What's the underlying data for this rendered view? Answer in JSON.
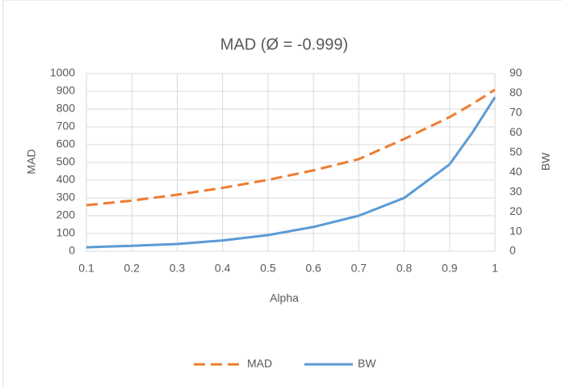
{
  "chart_data": {
    "type": "line",
    "title": "MAD (Ø = -0.999)",
    "x_label": "Alpha",
    "y_label": "MAD",
    "y2_label": "BW",
    "x": [
      0.1,
      0.2,
      0.3,
      0.4,
      0.5,
      0.6,
      0.7,
      0.8,
      0.9,
      0.95,
      1
    ],
    "series": [
      {
        "name": "MAD",
        "color": "#ed7d31",
        "dashed": true,
        "values": [
          259,
          285,
          318,
          357,
          402,
          455,
          518,
          632,
          755,
          828,
          909
        ]
      },
      {
        "name": "BW",
        "color": "#5b9bd5",
        "axis": "y2",
        "values": [
          2,
          2.8,
          3.7,
          5.5,
          8.2,
          12.3,
          18,
          27,
          44,
          60,
          78
        ]
      }
    ],
    "xlim": [
      0.1,
      1
    ],
    "xticks": [
      0.1,
      0.2,
      0.3,
      0.4,
      0.5,
      0.6,
      0.7,
      0.8,
      0.9,
      1
    ],
    "ylim": [
      0,
      1000
    ],
    "yticks": [
      0,
      100,
      200,
      300,
      400,
      500,
      600,
      700,
      800,
      900,
      1000
    ],
    "y2lim": [
      0,
      90
    ],
    "y2ticks": [
      0,
      10,
      20,
      30,
      40,
      50,
      60,
      70,
      80,
      90
    ],
    "grid": true,
    "legend": "bottom"
  }
}
